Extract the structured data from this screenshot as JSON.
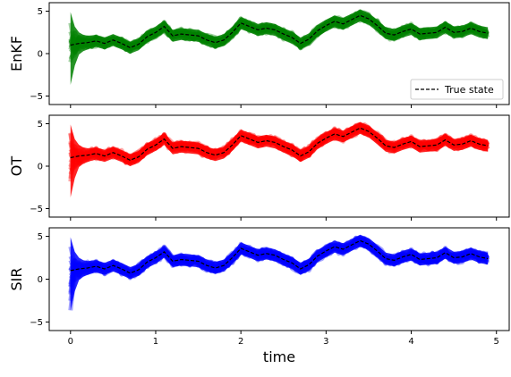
{
  "chart_data": {
    "type": "line",
    "x_label": "time",
    "xlim": [
      -0.25,
      5.15
    ],
    "ylim": [
      -6,
      6
    ],
    "x_ticks": [
      0,
      1,
      2,
      3,
      4,
      5
    ],
    "y_ticks": [
      -5,
      0,
      5
    ],
    "y_tick_labels": [
      "−5",
      "0",
      "5"
    ],
    "legend": {
      "label": "True state",
      "placement": "lower-right",
      "style": "black dashed"
    },
    "true_state": {
      "t": [
        0,
        0.1,
        0.2,
        0.3,
        0.4,
        0.5,
        0.6,
        0.7,
        0.8,
        0.9,
        1.0,
        1.1,
        1.2,
        1.3,
        1.4,
        1.5,
        1.6,
        1.7,
        1.8,
        1.9,
        2.0,
        2.1,
        2.2,
        2.3,
        2.4,
        2.5,
        2.6,
        2.7,
        2.8,
        2.9,
        3.0,
        3.1,
        3.2,
        3.3,
        3.4,
        3.5,
        3.6,
        3.7,
        3.8,
        3.9,
        4.0,
        4.1,
        4.2,
        4.3,
        4.4,
        4.5,
        4.6,
        4.7,
        4.8,
        4.9
      ],
      "x": [
        1.0,
        1.2,
        1.3,
        1.5,
        1.2,
        1.6,
        1.2,
        0.7,
        1.1,
        2.0,
        2.5,
        3.2,
        2.1,
        2.3,
        2.2,
        2.1,
        1.6,
        1.3,
        1.6,
        2.5,
        3.6,
        3.2,
        2.8,
        3.0,
        2.8,
        2.3,
        1.9,
        1.2,
        1.7,
        2.7,
        3.3,
        3.8,
        3.5,
        4.0,
        4.5,
        4.1,
        3.3,
        2.4,
        2.2,
        2.6,
        2.9,
        2.3,
        2.4,
        2.5,
        3.1,
        2.5,
        2.6,
        3.0,
        2.6,
        2.4
      ]
    },
    "panels": [
      {
        "name": "EnKF",
        "color": "#008000",
        "has_legend": true
      },
      {
        "name": "OT",
        "color": "#ff0000",
        "has_legend": false
      },
      {
        "name": "SIR",
        "color": "#0000ff",
        "has_legend": false
      }
    ]
  }
}
